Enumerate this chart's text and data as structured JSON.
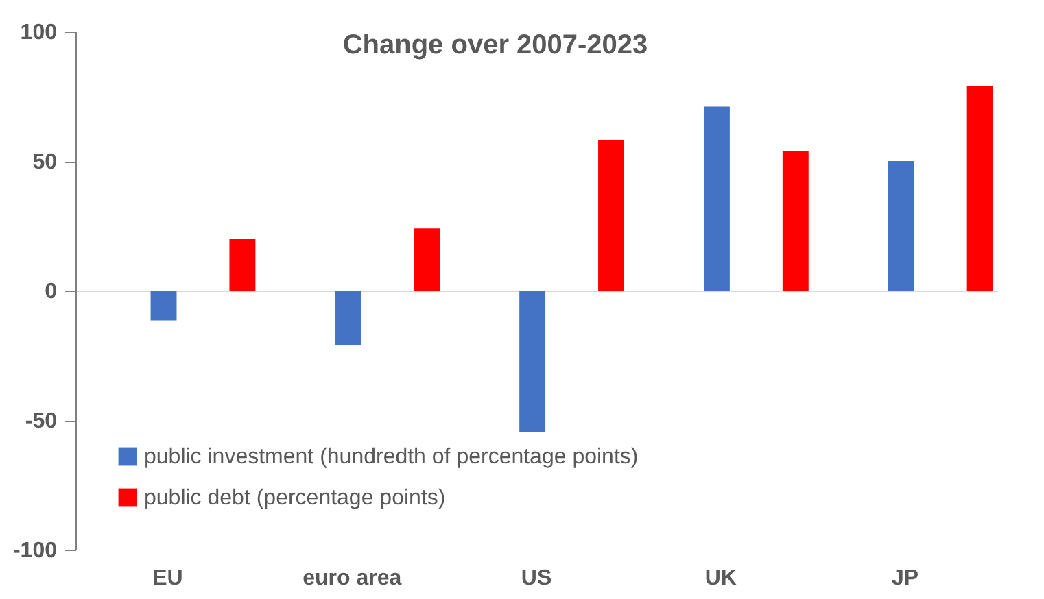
{
  "chart_data": {
    "type": "bar",
    "title": "Change over 2007-2023",
    "categories": [
      "EU",
      "euro area",
      "US",
      "UK",
      "JP"
    ],
    "series": [
      {
        "name": "public investment (hundredth of percentage points)",
        "color": "#4472c4",
        "values": [
          -11.5,
          -21,
          -54.5,
          71,
          50
        ]
      },
      {
        "name": "public debt (percentage points)",
        "color": "#ff0000",
        "values": [
          20,
          24,
          58,
          54,
          79
        ]
      }
    ],
    "ylim": [
      -100,
      100
    ],
    "yticks": [
      -100,
      -50,
      0,
      50,
      100
    ],
    "legend": "bottom left"
  }
}
